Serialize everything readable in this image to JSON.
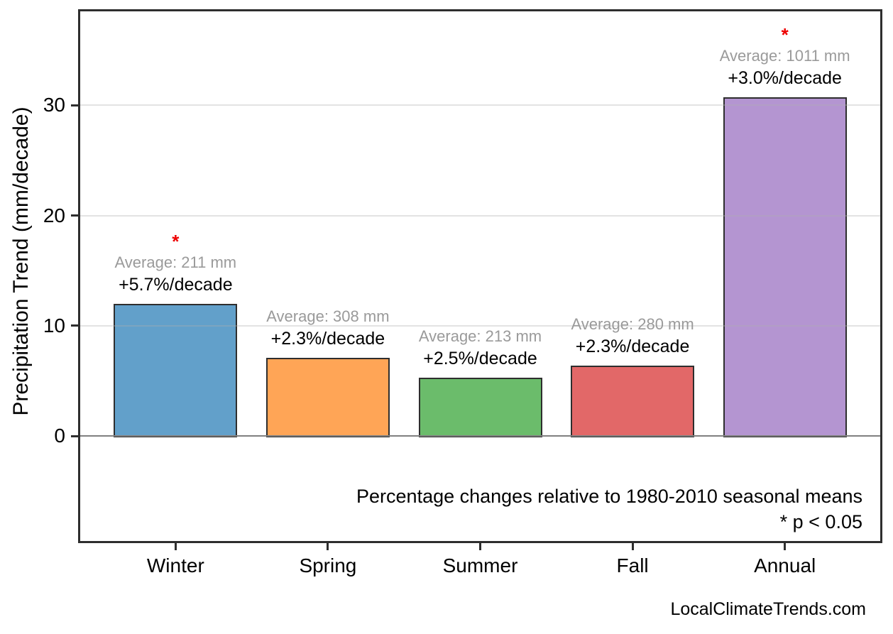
{
  "chart_data": {
    "type": "bar",
    "title": "",
    "categories": [
      "Winter",
      "Spring",
      "Summer",
      "Fall",
      "Annual"
    ],
    "values": [
      12.0,
      7.1,
      5.3,
      6.4,
      30.7
    ],
    "bar_colors": [
      "#62A0CA",
      "#FFA556",
      "#6BBC6B",
      "#E26868",
      "#B495D1"
    ],
    "bar_edge_color": "#2e2e2e",
    "averages_mm": [
      211,
      308,
      213,
      280,
      1011
    ],
    "average_labels": [
      "Average: 211 mm",
      "Average: 308 mm",
      "Average: 213 mm",
      "Average: 280 mm",
      "Average: 1011 mm"
    ],
    "percent_labels": [
      "+5.7%/decade",
      "+2.3%/decade",
      "+2.5%/decade",
      "+2.3%/decade",
      "+3.0%/decade"
    ],
    "significant": [
      true,
      false,
      false,
      false,
      true
    ],
    "significance_marker": "*",
    "xlabel": "",
    "ylabel": "Precipitation Trend (mm/decade)",
    "yticks": [
      0,
      10,
      20,
      30
    ],
    "ylim": [
      -9.7,
      38.7
    ],
    "grid": true,
    "legend": "none",
    "note_line1": "Percentage changes relative to 1980-2010 seasonal means",
    "note_line2": "* p < 0.05",
    "colors": {
      "grid": "#b0b0b0",
      "zero_line": "#808080",
      "average_text": "#9a9a9a",
      "significance_marker": "#ee0000",
      "plot_border": "#2e2e2e"
    }
  },
  "footer": {
    "watermark": "LocalClimateTrends.com"
  }
}
